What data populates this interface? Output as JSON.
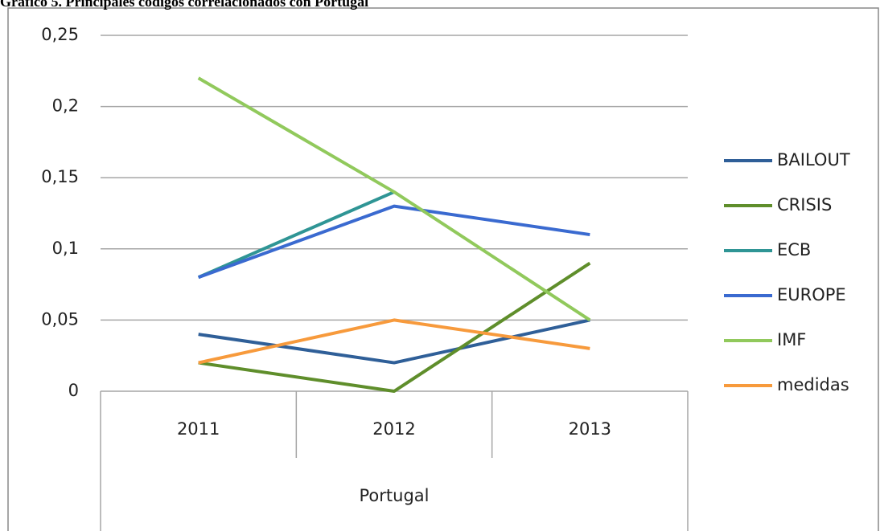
{
  "chart_data": {
    "type": "line",
    "title": "Gráfico 5. Principales códigos correlacionados con Portugal",
    "categories": [
      "2011",
      "2012",
      "2013"
    ],
    "category_group": "Portugal",
    "series": [
      {
        "name": "BAILOUT",
        "color": "#2f5f98",
        "values": [
          0.04,
          0.02,
          0.05
        ]
      },
      {
        "name": "CRISIS",
        "color": "#5f8e2b",
        "values": [
          0.02,
          0,
          0.09
        ]
      },
      {
        "name": "ECB",
        "color": "#2f9595",
        "values": [
          0.08,
          0.14,
          null
        ]
      },
      {
        "name": "EUROPE",
        "color": "#3a6ad0",
        "values": [
          0.08,
          0.13,
          0.11
        ]
      },
      {
        "name": "IMF",
        "color": "#91c95c",
        "values": [
          0.22,
          0.14,
          0.05
        ]
      },
      {
        "name": "medidas",
        "color": "#f79a3c",
        "values": [
          0.02,
          0.05,
          0.03
        ]
      }
    ],
    "ylim": [
      0,
      0.25
    ],
    "yticks": [
      0,
      {
        "value": 0.05,
        "label": "0,05"
      },
      {
        "value": 0.1,
        "label": "0,1"
      },
      {
        "value": 0.15,
        "label": "0,15"
      },
      {
        "value": 0.2,
        "label": "0,2"
      },
      {
        "value": 0.25,
        "label": "0,25"
      }
    ],
    "grid": true,
    "legend": "right"
  }
}
